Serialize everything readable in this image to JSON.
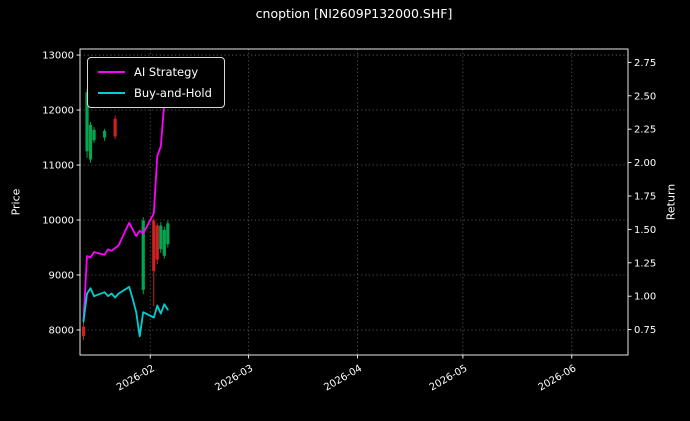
{
  "chart_data": {
    "type": "mixed",
    "subtypes": [
      "candlestick",
      "line"
    ],
    "title": "cnoption [NI2609P132000.SHF]",
    "ylabel_left": "Price",
    "ylabel_right": "Return",
    "x_ticks": [
      "2026-02",
      "2026-03",
      "2026-04",
      "2026-05",
      "2026-06"
    ],
    "price_ticks": [
      8000,
      9000,
      10000,
      11000,
      12000,
      13000
    ],
    "return_ticks": [
      0.75,
      1.0,
      1.25,
      1.5,
      1.75,
      2.0,
      2.25,
      2.5,
      2.75
    ],
    "x_domain": [
      "2026-01-12",
      "2026-06-17"
    ],
    "price_axis_range": [
      7545,
      13110
    ],
    "return_axis_range": [
      0.56,
      2.85
    ],
    "grid": true,
    "legend_position": "upper-left",
    "colors": {
      "background": "#000000",
      "foreground": "#ffffff",
      "grid": "#7f7f7f",
      "up": "#00a650",
      "down": "#cc2222",
      "ai_strategy": "#ff00ff",
      "buy_and_hold": "#00ced1"
    },
    "candles": [
      {
        "date": "2026-01-13",
        "open": 8060,
        "high": 8160,
        "low": 7820,
        "close": 7890
      },
      {
        "date": "2026-01-14",
        "open": 11250,
        "high": 12380,
        "low": 11130,
        "close": 12320
      },
      {
        "date": "2026-01-15",
        "open": 11100,
        "high": 11780,
        "low": 11040,
        "close": 11730
      },
      {
        "date": "2026-01-16",
        "open": 11450,
        "high": 11690,
        "low": 11400,
        "close": 11640
      },
      {
        "date": "2026-01-19",
        "open": 11500,
        "high": 11660,
        "low": 11440,
        "close": 11620
      },
      {
        "date": "2026-01-22",
        "open": 11840,
        "high": 11900,
        "low": 11470,
        "close": 11520
      },
      {
        "date": "2026-01-30",
        "open": 8730,
        "high": 10050,
        "low": 8650,
        "close": 9990
      },
      {
        "date": "2026-02-02",
        "open": 9990,
        "high": 10030,
        "low": 8430,
        "close": 9070
      },
      {
        "date": "2026-02-03",
        "open": 9900,
        "high": 9940,
        "low": 9200,
        "close": 9280
      },
      {
        "date": "2026-02-04",
        "open": 9470,
        "high": 9960,
        "low": 9400,
        "close": 9900
      },
      {
        "date": "2026-02-05",
        "open": 9350,
        "high": 9880,
        "low": 9300,
        "close": 9820
      },
      {
        "date": "2026-02-06",
        "open": 9560,
        "high": 9990,
        "low": 9500,
        "close": 9940
      }
    ],
    "series": [
      {
        "name": "AI Strategy",
        "axis": "return",
        "color": "#ff00ff",
        "x": [
          "2026-01-13",
          "2026-01-14",
          "2026-01-15",
          "2026-01-16",
          "2026-01-19",
          "2026-01-20",
          "2026-01-21",
          "2026-01-22",
          "2026-01-23",
          "2026-01-26",
          "2026-01-27",
          "2026-01-28",
          "2026-01-29",
          "2026-01-30",
          "2026-02-02",
          "2026-02-03",
          "2026-02-04",
          "2026-02-05",
          "2026-02-06"
        ],
        "y": [
          0.82,
          1.3,
          1.29,
          1.33,
          1.31,
          1.35,
          1.34,
          1.36,
          1.38,
          1.55,
          1.5,
          1.45,
          1.49,
          1.47,
          1.62,
          2.05,
          2.12,
          2.45,
          2.68
        ]
      },
      {
        "name": "Buy-and-Hold",
        "axis": "return",
        "color": "#00ced1",
        "x": [
          "2026-01-13",
          "2026-01-14",
          "2026-01-15",
          "2026-01-16",
          "2026-01-19",
          "2026-01-20",
          "2026-01-21",
          "2026-01-22",
          "2026-01-23",
          "2026-01-26",
          "2026-01-27",
          "2026-01-28",
          "2026-01-29",
          "2026-01-30",
          "2026-02-02",
          "2026-02-03",
          "2026-02-04",
          "2026-02-05",
          "2026-02-06"
        ],
        "y": [
          0.81,
          1.02,
          1.06,
          1.0,
          1.03,
          1.0,
          1.02,
          0.99,
          1.02,
          1.07,
          0.98,
          0.88,
          0.7,
          0.88,
          0.84,
          0.93,
          0.87,
          0.94,
          0.9
        ]
      }
    ]
  }
}
